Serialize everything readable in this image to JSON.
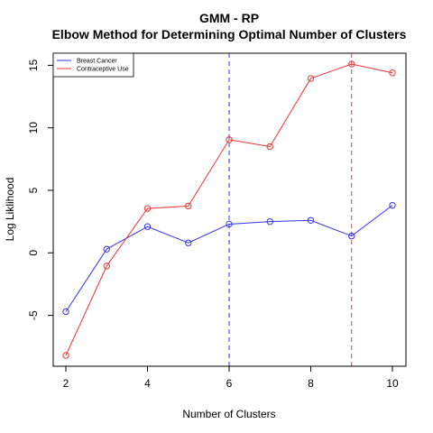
{
  "chart_data": {
    "type": "line",
    "title": "GMM - RP",
    "subtitle": "Elbow Method for Determining Optimal Number of Clusters",
    "xlabel": "Number of Clusters",
    "ylabel": "Log Liklihood",
    "xlim": [
      2,
      10
    ],
    "ylim": [
      -8.2,
      15.1
    ],
    "x_ticks": [
      2,
      4,
      6,
      8,
      10
    ],
    "y_ticks": [
      -5,
      0,
      5,
      10,
      15
    ],
    "x": [
      2,
      3,
      4,
      5,
      6,
      7,
      8,
      9,
      10
    ],
    "series": [
      {
        "name": "Breast Cancer",
        "color": "#3333ee",
        "values": [
          -4.7,
          0.3,
          2.1,
          0.8,
          2.3,
          2.5,
          2.6,
          1.35,
          3.8
        ]
      },
      {
        "name": "Contraceptive Use",
        "color": "#ee3333",
        "values": [
          -8.2,
          -1.05,
          3.55,
          3.75,
          9.05,
          8.5,
          13.95,
          15.1,
          14.4
        ]
      }
    ],
    "vlines": [
      {
        "x": 6,
        "color": "#3333ee"
      },
      {
        "x": 9,
        "color": "#ee3333"
      }
    ],
    "legend_position": "top-left",
    "grid": false
  }
}
